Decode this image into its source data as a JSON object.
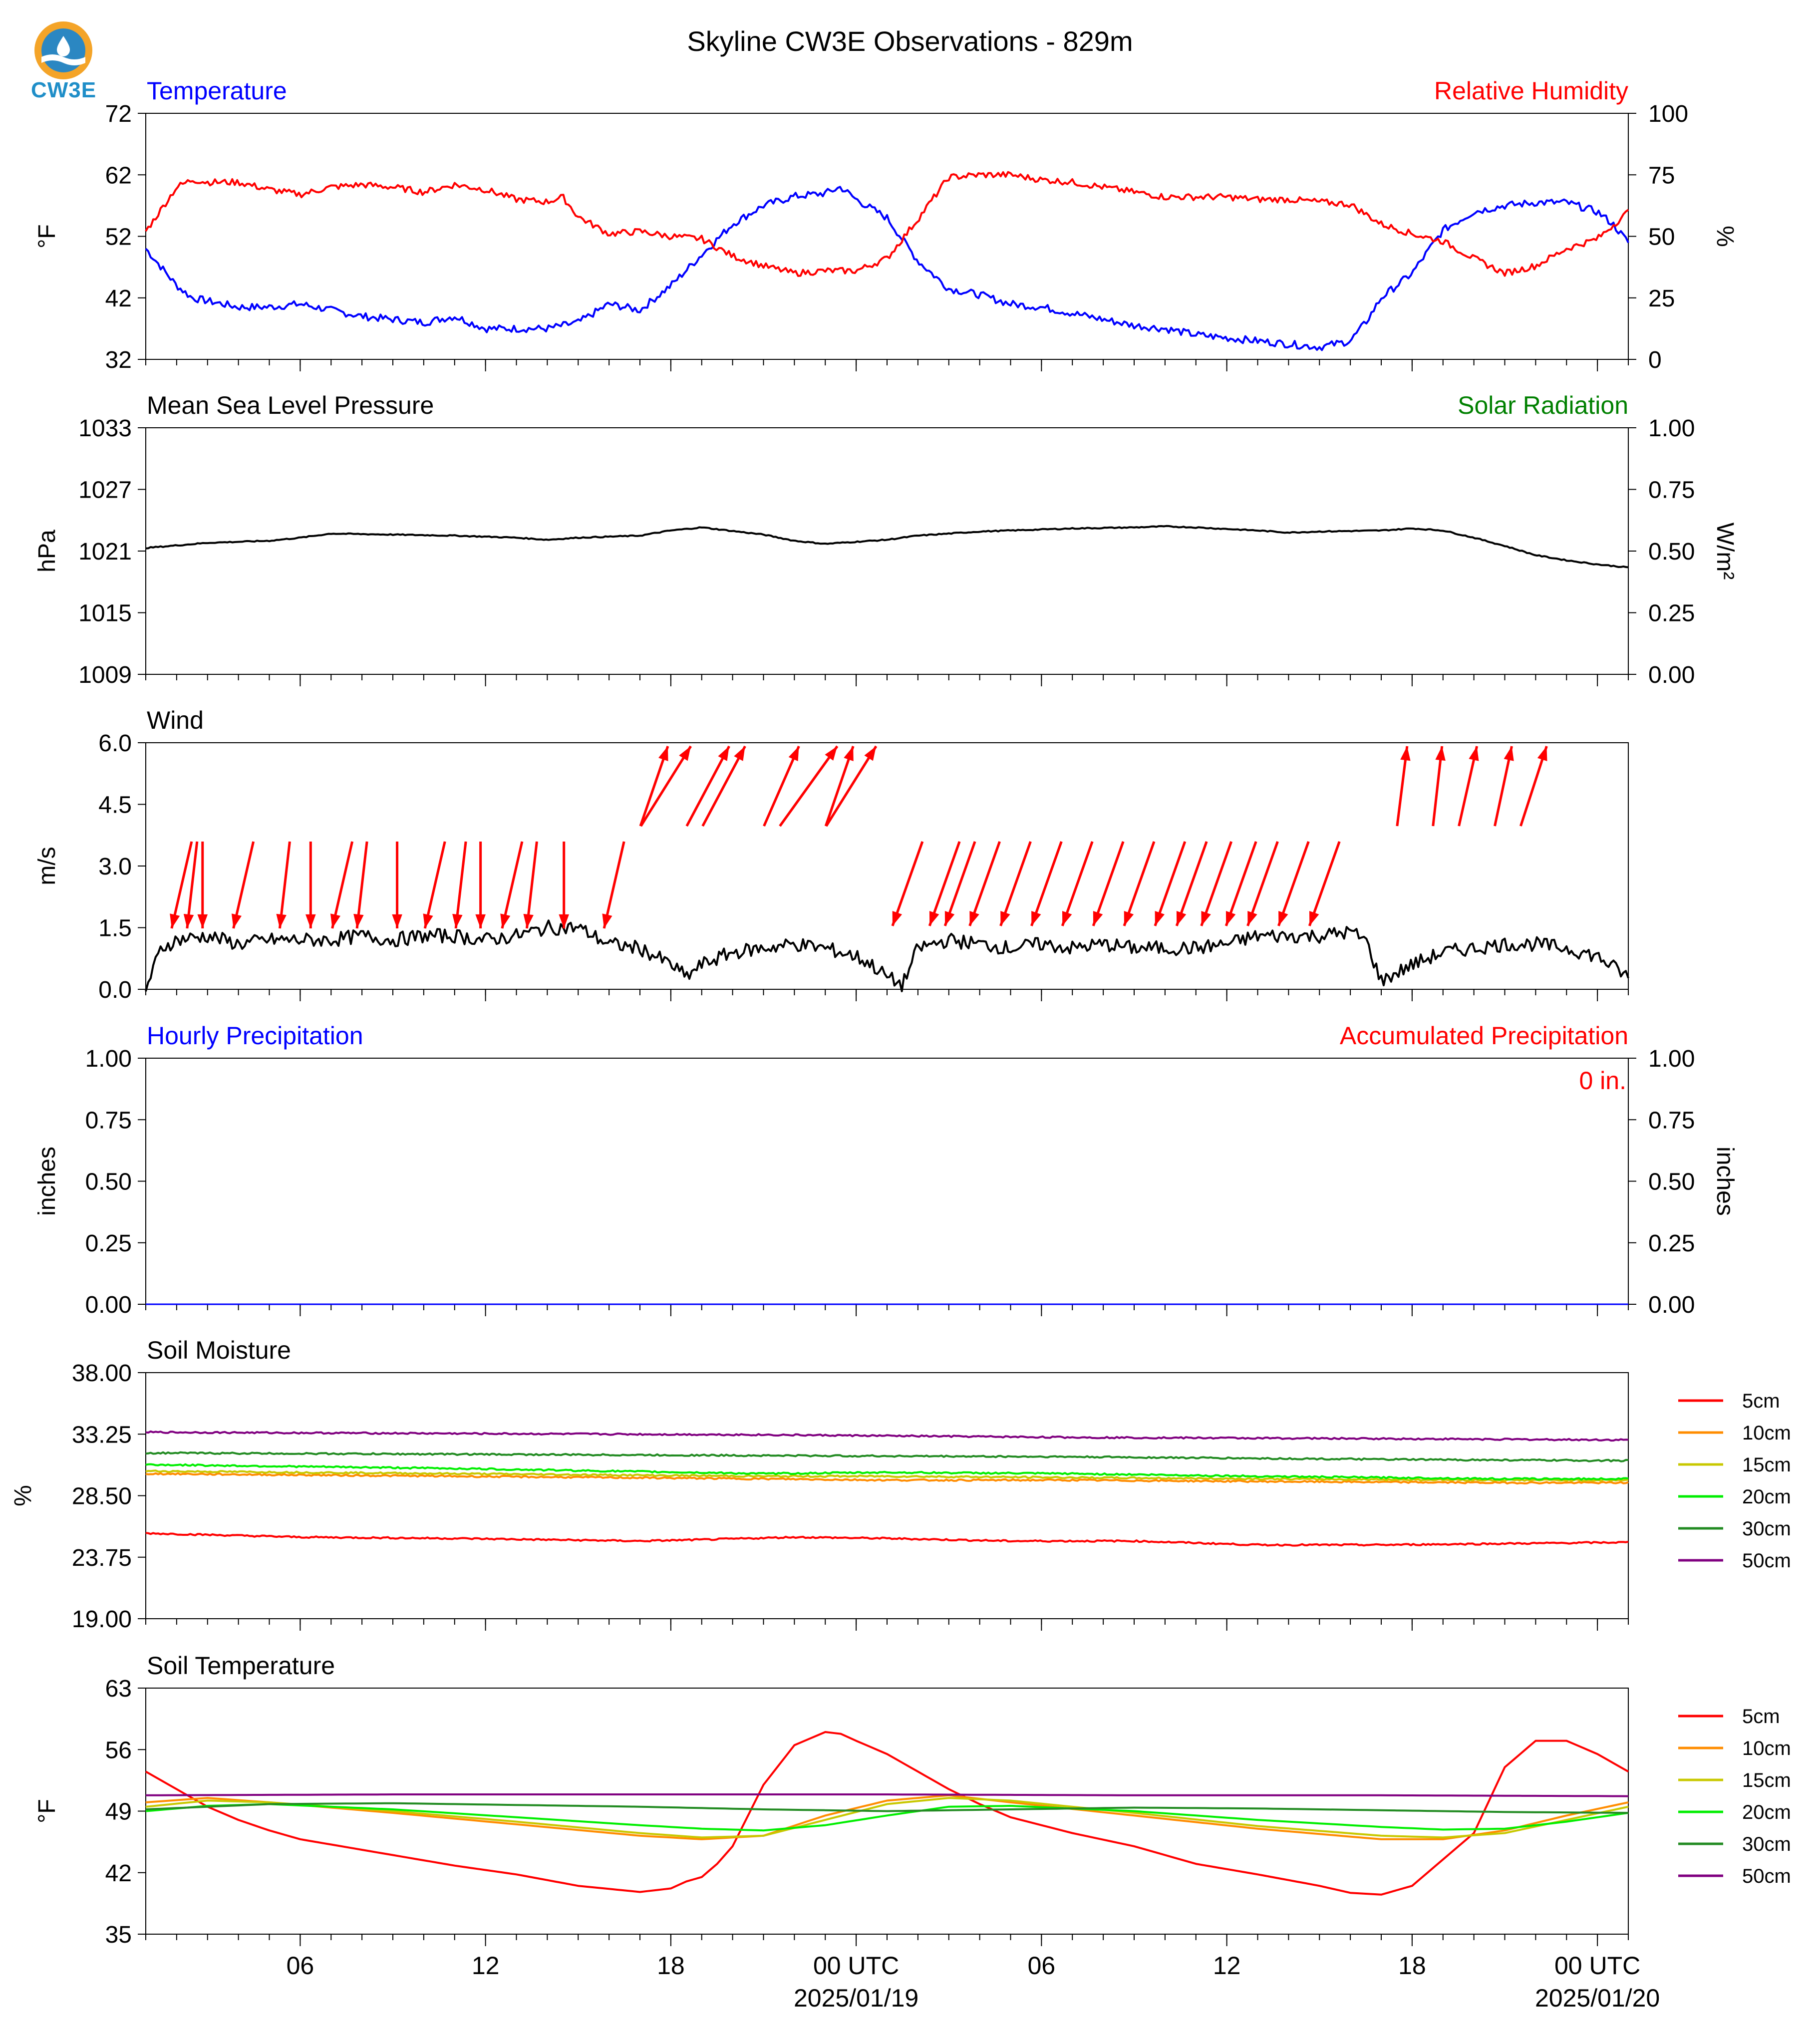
{
  "title": "Skyline CW3E Observations - 829m",
  "logo_text": "CW3E",
  "colors": {
    "temp": "#0000ff",
    "rh": "#ff0000",
    "green": "#008000",
    "black": "#000000"
  },
  "chart_data": [
    {
      "id": "temp_rh",
      "type": "line",
      "left_title": "Temperature",
      "right_title": "Relative Humidity",
      "ylabel": "°F",
      "ylabel_right": "%",
      "ylim": [
        32,
        72
      ],
      "ylim_right": [
        0,
        100
      ],
      "yticks": [
        "32",
        "42",
        "52",
        "62",
        "72"
      ],
      "yticks_right": [
        "0",
        "25",
        "50",
        "75",
        "100"
      ],
      "series": [
        {
          "key": "temperature",
          "color": "#0000ff",
          "axis": "left",
          "x": [
            0,
            1,
            1.5,
            2,
            3,
            4,
            5,
            6,
            7,
            8,
            9,
            10,
            11,
            12,
            13,
            14,
            15,
            16,
            17,
            18,
            19,
            20,
            21,
            22,
            22.5,
            23,
            24,
            25,
            26,
            27,
            28,
            29,
            30,
            31,
            32,
            33,
            34,
            35,
            36,
            37,
            38,
            39,
            39.5,
            40,
            41,
            42,
            43,
            44,
            45,
            46,
            47,
            47.5,
            48
          ],
          "y": [
            50,
            44,
            42,
            41.5,
            40.5,
            40.5,
            41,
            40,
            39,
            38.5,
            38,
            39,
            37,
            37,
            37,
            38,
            41,
            40,
            44,
            49,
            54,
            57,
            58.5,
            59,
            60,
            58,
            55,
            48,
            43.5,
            42.5,
            41,
            40.5,
            39.5,
            38.5,
            37.5,
            37,
            36,
            35.5,
            35,
            34.5,
            34,
            35,
            38,
            42,
            46,
            53,
            56,
            57,
            57.5,
            57.5,
            56,
            54,
            51
          ]
        },
        {
          "key": "relative_humidity",
          "color": "#ff0000",
          "axis": "right",
          "x": [
            0,
            1,
            1.5,
            2,
            3,
            4,
            5,
            6,
            7,
            8,
            9,
            10,
            11,
            12,
            13,
            13.5,
            14,
            15,
            16,
            17,
            18,
            19,
            20,
            21,
            22,
            23,
            24,
            25,
            26,
            27,
            28,
            29,
            30,
            31,
            32,
            33,
            34,
            35,
            36,
            37,
            38,
            39,
            40,
            41,
            42,
            43,
            44,
            45,
            46,
            47,
            48
          ],
          "y": [
            52,
            70,
            73,
            72,
            72,
            69,
            67,
            70,
            71,
            70,
            68,
            71,
            69,
            65,
            64,
            66,
            58,
            51,
            52,
            50,
            49,
            42,
            38,
            35,
            36,
            36,
            41,
            57,
            74,
            75,
            75,
            73,
            72,
            70,
            68,
            66,
            66,
            66,
            65,
            65,
            64,
            63,
            55,
            51,
            48,
            41,
            35,
            38,
            45,
            49,
            60
          ]
        }
      ]
    },
    {
      "id": "pressure",
      "type": "line",
      "left_title": "Mean Sea Level Pressure",
      "right_title": "Solar Radiation",
      "ylabel": "hPa",
      "ylabel_right": "W/m²",
      "ylim": [
        1009,
        1033
      ],
      "ylim_right": [
        0,
        1
      ],
      "yticks": [
        "1009",
        "1015",
        "1021",
        "1027",
        "1033"
      ],
      "yticks_right": [
        "0.00",
        "0.25",
        "0.50",
        "0.75",
        "1.00"
      ],
      "series": [
        {
          "key": "mslp",
          "color": "#000000",
          "axis": "left",
          "x": [
            0,
            2,
            4,
            5,
            6,
            8,
            10,
            12,
            13,
            14,
            16,
            17,
            18,
            20,
            21,
            22,
            24,
            25,
            27,
            28,
            30,
            32,
            33,
            34,
            36,
            37,
            38,
            40,
            41,
            42,
            43,
            44,
            45,
            46,
            47,
            48
          ],
          "y": [
            1021.3,
            1021.8,
            1022.0,
            1022.3,
            1022.7,
            1022.6,
            1022.5,
            1022.3,
            1022.1,
            1022.3,
            1022.5,
            1023.0,
            1023.3,
            1022.6,
            1022.0,
            1021.7,
            1022.1,
            1022.5,
            1022.9,
            1023.0,
            1023.2,
            1023.3,
            1023.4,
            1023.3,
            1023.0,
            1022.8,
            1022.9,
            1023.0,
            1023.2,
            1023.0,
            1022.3,
            1021.5,
            1020.6,
            1020.1,
            1019.7,
            1019.4
          ]
        }
      ]
    },
    {
      "id": "wind",
      "type": "line",
      "left_title": "Wind",
      "ylabel": "m/s",
      "ylim": [
        0,
        6
      ],
      "yticks": [
        "0.0",
        "1.5",
        "3.0",
        "4.5",
        "6.0"
      ],
      "series": [
        {
          "key": "wind_speed",
          "color": "#000000",
          "axis": "left",
          "x": [
            0,
            0.5,
            1,
            2,
            3,
            4,
            5,
            6,
            7,
            8,
            9,
            10,
            11,
            12,
            13,
            14,
            15,
            16,
            17,
            17.5,
            18,
            19,
            20,
            21,
            22,
            23,
            23.5,
            24,
            24.5,
            25,
            26,
            27,
            28,
            29,
            30,
            31,
            32,
            33,
            34,
            35,
            36,
            37,
            38,
            39,
            39.5,
            40,
            41,
            42,
            43,
            44,
            45,
            46,
            47,
            48
          ],
          "y": [
            0,
            1.0,
            1.2,
            1.3,
            1.1,
            1.2,
            1.2,
            1.2,
            1.3,
            1.2,
            1.3,
            1.3,
            1.2,
            1.3,
            1.5,
            1.5,
            1.1,
            1.0,
            0.6,
            0.3,
            0.6,
            0.9,
            1.0,
            1.1,
            1.0,
            0.8,
            0.6,
            0.3,
            0.1,
            1.0,
            1.2,
            1.1,
            1.0,
            1.1,
            1.0,
            1.1,
            1.0,
            1.0,
            1.0,
            1.1,
            1.3,
            1.3,
            1.3,
            1.4,
            1.2,
            0.2,
            0.6,
            0.9,
            1.0,
            1.1,
            1.1,
            1.0,
            0.8,
            0.3
          ]
        }
      ],
      "barbs_x": [
        1,
        1.5,
        2,
        3,
        4.5,
        5.5,
        6.2,
        7,
        8.3,
        9.2,
        10.2,
        11,
        11.7,
        12.5,
        13.7,
        15
      ],
      "barbs2_x": [
        16.5,
        17,
        18,
        19,
        20.5,
        21.5,
        22.5,
        23,
        24.5,
        25.7,
        26.2,
        27,
        28,
        29,
        30,
        31,
        32,
        33,
        33.7,
        34.5,
        35.3,
        36,
        37,
        38
      ],
      "barbs3_x": [
        41,
        42,
        43,
        44,
        45
      ]
    },
    {
      "id": "precip",
      "type": "bar",
      "left_title": "Hourly Precipitation",
      "right_title": "Accumulated Precipitation",
      "ylabel": "inches",
      "ylabel_right": "inches",
      "ylim": [
        0,
        1
      ],
      "ylim_right": [
        0,
        1
      ],
      "yticks": [
        "0.00",
        "0.25",
        "0.50",
        "0.75",
        "1.00"
      ],
      "yticks_right": [
        "0.00",
        "0.25",
        "0.50",
        "0.75",
        "1.00"
      ],
      "annotation": "0 in.",
      "series": [
        {
          "key": "hourly_precip",
          "color": "#0000ff",
          "axis": "left",
          "x": [
            0,
            48
          ],
          "y": [
            0,
            0
          ]
        }
      ]
    },
    {
      "id": "soil_moisture",
      "type": "line",
      "left_title": "Soil Moisture",
      "ylabel": "%",
      "ylim": [
        19,
        38
      ],
      "yticks": [
        "19.00",
        "23.75",
        "28.50",
        "33.25",
        "38.00"
      ],
      "series": [
        {
          "name": "5cm",
          "color": "#ff0000",
          "x": [
            0,
            5,
            10,
            16,
            18,
            21,
            24,
            28,
            32,
            36,
            40,
            44,
            48
          ],
          "y": [
            25.6,
            25.3,
            25.2,
            25.0,
            25.1,
            25.3,
            25.2,
            25.0,
            25.0,
            24.7,
            24.7,
            24.8,
            24.9
          ]
        },
        {
          "name": "10cm",
          "color": "#ff8c00",
          "x": [
            0,
            10,
            20,
            24,
            30,
            36,
            44,
            48
          ],
          "y": [
            30.2,
            30.0,
            29.8,
            29.7,
            29.7,
            29.6,
            29.5,
            29.5
          ]
        },
        {
          "name": "15cm",
          "color": "#c8c800",
          "x": [
            0,
            10,
            20,
            24,
            30,
            36,
            44,
            48
          ],
          "y": [
            30.4,
            30.2,
            30.0,
            30.0,
            29.9,
            29.8,
            29.7,
            29.7
          ]
        },
        {
          "name": "20cm",
          "color": "#00ee00",
          "x": [
            0,
            10,
            20,
            24,
            30,
            36,
            44,
            48
          ],
          "y": [
            30.9,
            30.6,
            30.2,
            30.3,
            30.2,
            30.0,
            29.8,
            29.8
          ]
        },
        {
          "name": "30cm",
          "color": "#228b22",
          "x": [
            0,
            10,
            20,
            30,
            40,
            48
          ],
          "y": [
            31.8,
            31.7,
            31.6,
            31.5,
            31.3,
            31.2
          ]
        },
        {
          "name": "50cm",
          "color": "#800080",
          "x": [
            0,
            10,
            20,
            30,
            40,
            48
          ],
          "y": [
            33.4,
            33.3,
            33.2,
            33.0,
            32.9,
            32.8
          ]
        }
      ]
    },
    {
      "id": "soil_temperature",
      "type": "line",
      "left_title": "Soil Temperature",
      "ylabel": "°F",
      "ylim": [
        35,
        63
      ],
      "yticks": [
        "35",
        "42",
        "49",
        "56",
        "63"
      ],
      "series": [
        {
          "name": "5cm",
          "color": "#ff0000",
          "x": [
            0,
            1,
            2,
            3,
            4,
            5,
            6,
            8,
            10,
            12,
            14,
            16,
            16.5,
            17,
            17.5,
            18,
            18.5,
            19,
            20,
            21,
            22,
            22.5,
            23,
            24,
            25,
            26,
            27,
            28,
            30,
            32,
            34,
            36,
            38,
            39,
            40,
            41,
            42,
            43,
            44,
            45,
            46,
            47,
            48
          ],
          "y": [
            53.5,
            51.5,
            49.5,
            48.0,
            46.8,
            45.8,
            45.2,
            44.0,
            42.8,
            41.8,
            40.5,
            39.8,
            40.0,
            40.2,
            41.0,
            41.5,
            43.0,
            45.0,
            52.0,
            56.5,
            58.0,
            57.8,
            57.0,
            55.5,
            53.5,
            51.5,
            49.8,
            48.3,
            46.5,
            45.0,
            43.0,
            41.8,
            40.5,
            39.7,
            39.5,
            40.5,
            43.5,
            46.5,
            54.0,
            57.0,
            57.0,
            55.5,
            53.5
          ]
        },
        {
          "name": "10cm",
          "color": "#ff8c00",
          "x": [
            0,
            2,
            4,
            8,
            12,
            16,
            18,
            20,
            22,
            24,
            26,
            28,
            32,
            36,
            40,
            42,
            44,
            46,
            48
          ],
          "y": [
            50.0,
            50.5,
            50.0,
            48.8,
            47.5,
            46.2,
            45.8,
            46.2,
            48.5,
            50.2,
            50.8,
            50.0,
            48.5,
            47.0,
            45.8,
            45.8,
            46.8,
            48.5,
            50.0
          ]
        },
        {
          "name": "15cm",
          "color": "#c8c800",
          "x": [
            0,
            2,
            4,
            8,
            12,
            16,
            18,
            20,
            22,
            24,
            26,
            28,
            32,
            36,
            40,
            42,
            44,
            46,
            48
          ],
          "y": [
            49.5,
            50.2,
            50.0,
            49.0,
            47.8,
            46.5,
            46.0,
            46.2,
            48.0,
            49.8,
            50.5,
            50.2,
            48.8,
            47.3,
            46.2,
            46.0,
            46.5,
            48.0,
            49.5
          ]
        },
        {
          "name": "20cm",
          "color": "#00ee00",
          "x": [
            0,
            2,
            4,
            8,
            12,
            16,
            18,
            20,
            22,
            24,
            26,
            28,
            32,
            36,
            40,
            42,
            44,
            46,
            48
          ],
          "y": [
            49.0,
            49.6,
            49.8,
            49.2,
            48.3,
            47.4,
            47.0,
            46.8,
            47.4,
            48.5,
            49.5,
            49.6,
            49.0,
            48.0,
            47.2,
            46.9,
            47.0,
            47.8,
            48.8
          ]
        },
        {
          "name": "30cm",
          "color": "#228b22",
          "x": [
            0,
            4,
            8,
            12,
            16,
            20,
            24,
            28,
            32,
            36,
            40,
            44,
            48
          ],
          "y": [
            49.2,
            49.8,
            49.9,
            49.7,
            49.5,
            49.2,
            49.0,
            49.2,
            49.4,
            49.3,
            49.1,
            48.9,
            48.8
          ]
        },
        {
          "name": "50cm",
          "color": "#800080",
          "x": [
            0,
            8,
            16,
            24,
            32,
            40,
            48
          ],
          "y": [
            50.8,
            50.9,
            50.9,
            50.9,
            50.8,
            50.8,
            50.7
          ]
        }
      ]
    }
  ],
  "x_axis": {
    "tick_hours": [
      5,
      11,
      17,
      23,
      29,
      35,
      41,
      47
    ],
    "tick_labels": [
      "06",
      "12",
      "18",
      "00 UTC",
      "06",
      "12",
      "18",
      "00 UTC"
    ],
    "date_labels": [
      {
        "hour": 23,
        "text": "2025/01/19"
      },
      {
        "hour": 47,
        "text": "2025/01/20"
      }
    ]
  }
}
